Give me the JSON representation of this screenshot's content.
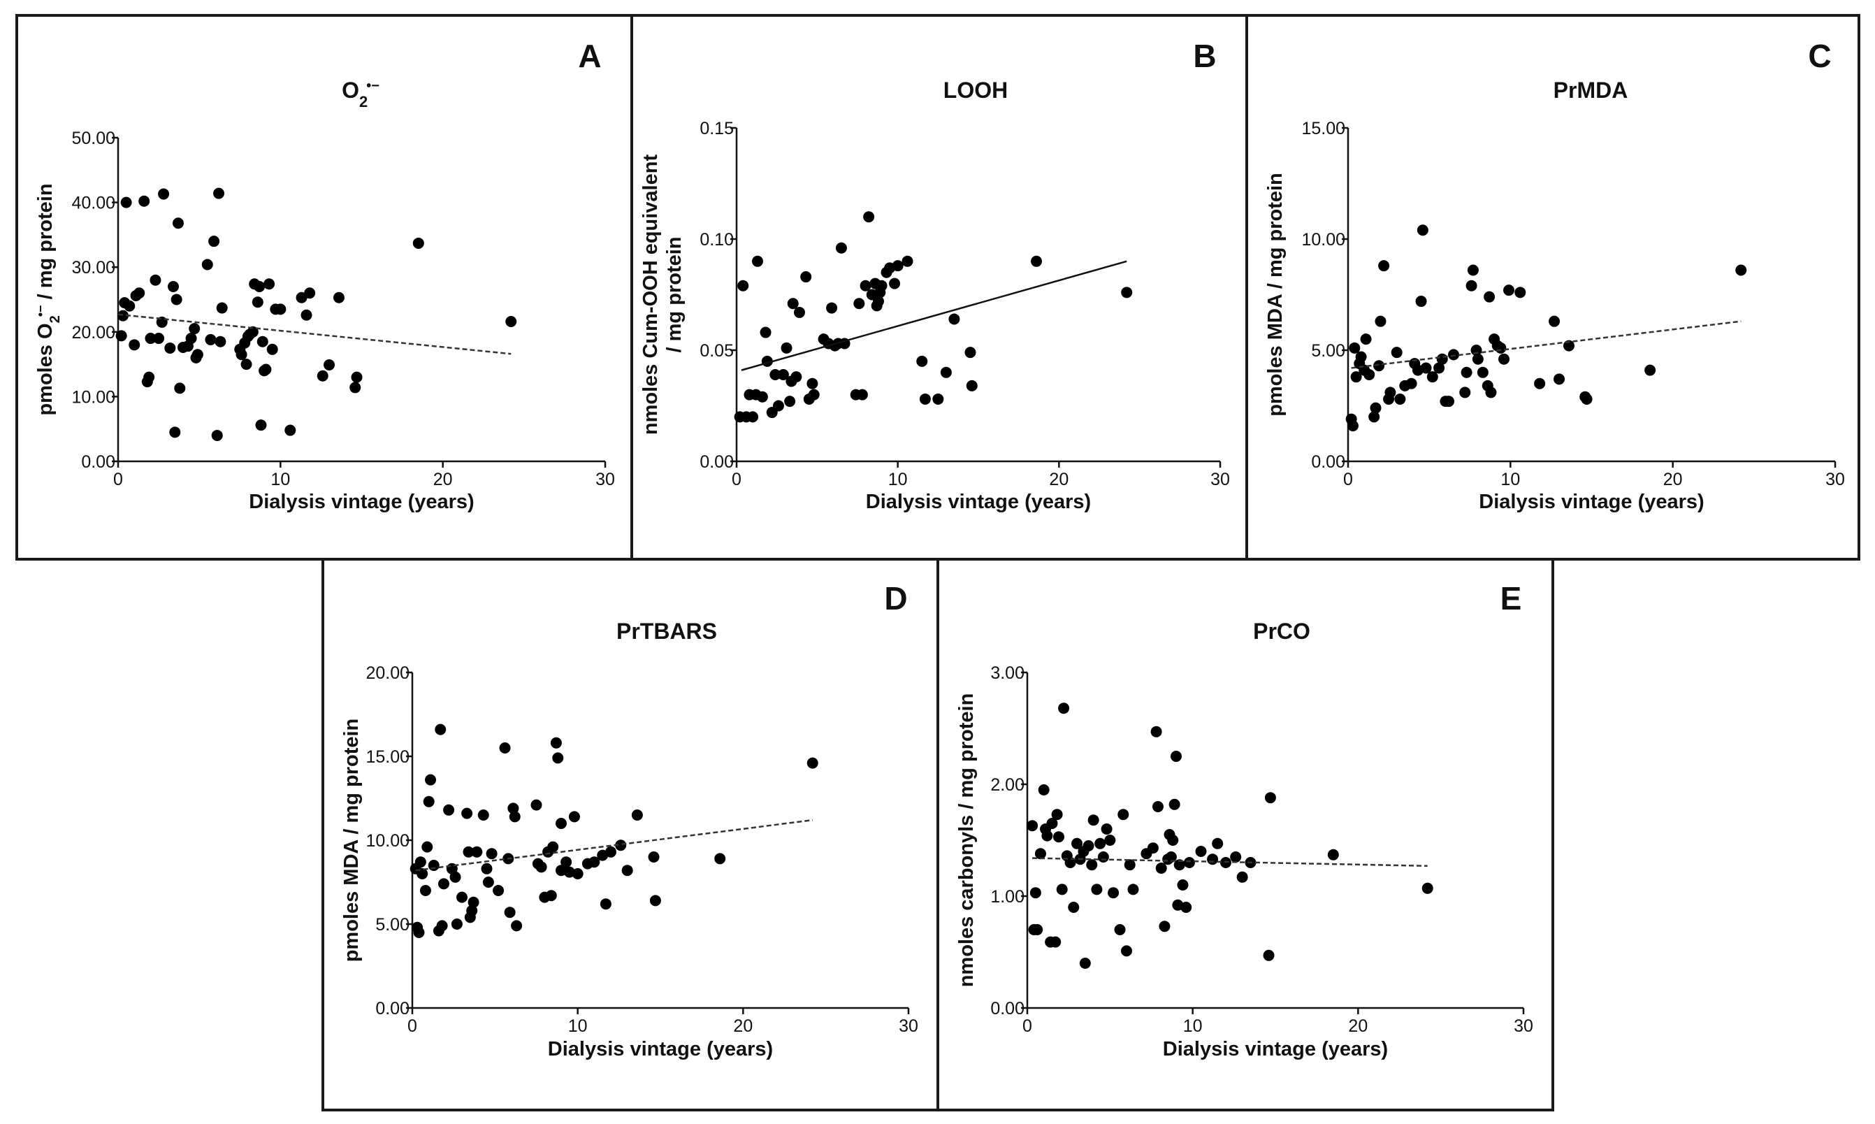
{
  "chart_data": [
    {
      "panel": "A",
      "type": "scatter",
      "title": "O2•−",
      "title_parts": {
        "base": "O",
        "sub": "2",
        "sup": "•−"
      },
      "xlabel": "Dialysis vintage (years)",
      "ylabel": "pmoles O2•− / mg protein",
      "ylabel_parts": {
        "before": "pmoles O",
        "sub": "2",
        "sup": "•−",
        "after": " / mg protein"
      },
      "xlim": [
        0,
        30
      ],
      "ylim": [
        0,
        50
      ],
      "xticks": [
        0,
        10,
        20,
        30
      ],
      "xtick_labels": [
        "0",
        "10",
        "20",
        "30"
      ],
      "yticks": [
        0,
        10,
        20,
        30,
        40,
        50
      ],
      "ytick_labels": [
        "0.00",
        "10.00",
        "20.00",
        "30.00",
        "40.00",
        "50.00"
      ],
      "trendline": {
        "style": "dashed",
        "x": [
          0,
          24.2
        ],
        "y": [
          22.7,
          16.6
        ]
      },
      "points": [
        [
          0.2,
          19.4
        ],
        [
          0.3,
          22.5
        ],
        [
          0.4,
          24.5
        ],
        [
          0.5,
          40
        ],
        [
          0.7,
          24
        ],
        [
          1,
          18
        ],
        [
          1.1,
          25.6
        ],
        [
          1.3,
          26
        ],
        [
          1.6,
          40.2
        ],
        [
          1.8,
          12.3
        ],
        [
          1.9,
          13
        ],
        [
          2,
          19
        ],
        [
          2.3,
          28
        ],
        [
          2.5,
          19
        ],
        [
          2.7,
          21.5
        ],
        [
          2.8,
          41.3
        ],
        [
          3.2,
          17.5
        ],
        [
          3.4,
          27
        ],
        [
          3.5,
          4.5
        ],
        [
          3.6,
          25
        ],
        [
          3.7,
          36.8
        ],
        [
          3.8,
          11.3
        ],
        [
          4,
          17.6
        ],
        [
          4.3,
          17.8
        ],
        [
          4.5,
          19
        ],
        [
          4.7,
          20.5
        ],
        [
          4.8,
          16
        ],
        [
          4.9,
          16.5
        ],
        [
          5.5,
          30.4
        ],
        [
          5.7,
          18.8
        ],
        [
          5.9,
          34
        ],
        [
          6.1,
          4
        ],
        [
          6.2,
          41.4
        ],
        [
          6.3,
          18.5
        ],
        [
          6.4,
          23.7
        ],
        [
          7.5,
          17.3
        ],
        [
          7.6,
          16.5
        ],
        [
          7.8,
          18.3
        ],
        [
          7.9,
          15
        ],
        [
          8,
          19.3
        ],
        [
          8.1,
          19.6
        ],
        [
          8.3,
          20
        ],
        [
          8.4,
          27.4
        ],
        [
          8.6,
          24.6
        ],
        [
          8.7,
          27
        ],
        [
          8.8,
          5.6
        ],
        [
          8.9,
          18.5
        ],
        [
          9,
          14
        ],
        [
          9.1,
          14.2
        ],
        [
          9.3,
          27.4
        ],
        [
          9.5,
          17.3
        ],
        [
          9.7,
          23.5
        ],
        [
          10,
          23.5
        ],
        [
          10.6,
          4.8
        ],
        [
          11.3,
          25.3
        ],
        [
          11.6,
          22.6
        ],
        [
          11.8,
          26
        ],
        [
          12.6,
          13.2
        ],
        [
          13,
          14.9
        ],
        [
          13.6,
          25.3
        ],
        [
          14.6,
          11.4
        ],
        [
          14.7,
          13
        ],
        [
          18.5,
          33.7
        ],
        [
          24.2,
          21.6
        ]
      ]
    },
    {
      "panel": "B",
      "type": "scatter",
      "title": "LOOH",
      "xlabel": "Dialysis vintage (years)",
      "ylabel": "nmoles Cum-OOH equivalent",
      "ylabel_line2": "/ mg protein",
      "xlim": [
        0,
        30
      ],
      "ylim": [
        0,
        0.15
      ],
      "xticks": [
        0,
        10,
        20,
        30
      ],
      "xtick_labels": [
        "0",
        "10",
        "20",
        "30"
      ],
      "yticks": [
        0,
        0.05,
        0.1,
        0.15
      ],
      "ytick_labels": [
        "0.00",
        "0.05",
        "0.10",
        "0.15"
      ],
      "trendline": {
        "style": "solid",
        "x": [
          0.3,
          24.2
        ],
        "y": [
          0.041,
          0.09
        ]
      },
      "points": [
        [
          0.2,
          0.02
        ],
        [
          0.4,
          0.079
        ],
        [
          0.6,
          0.02
        ],
        [
          0.8,
          0.03
        ],
        [
          1,
          0.02
        ],
        [
          1.2,
          0.03
        ],
        [
          1.3,
          0.09
        ],
        [
          1.6,
          0.029
        ],
        [
          1.8,
          0.058
        ],
        [
          1.9,
          0.045
        ],
        [
          2.2,
          0.022
        ],
        [
          2.4,
          0.039
        ],
        [
          2.6,
          0.025
        ],
        [
          2.9,
          0.039
        ],
        [
          3.1,
          0.051
        ],
        [
          3.3,
          0.027
        ],
        [
          3.4,
          0.036
        ],
        [
          3.5,
          0.071
        ],
        [
          3.7,
          0.038
        ],
        [
          3.9,
          0.067
        ],
        [
          4.3,
          0.083
        ],
        [
          4.5,
          0.028
        ],
        [
          4.7,
          0.035
        ],
        [
          4.8,
          0.03
        ],
        [
          5.4,
          0.055
        ],
        [
          5.7,
          0.053
        ],
        [
          5.9,
          0.069
        ],
        [
          6.1,
          0.052
        ],
        [
          6.3,
          0.053
        ],
        [
          6.5,
          0.096
        ],
        [
          6.7,
          0.053
        ],
        [
          7.4,
          0.03
        ],
        [
          7.6,
          0.071
        ],
        [
          7.8,
          0.03
        ],
        [
          8,
          0.079
        ],
        [
          8.2,
          0.11
        ],
        [
          8.4,
          0.075
        ],
        [
          8.6,
          0.08
        ],
        [
          8.7,
          0.07
        ],
        [
          8.8,
          0.072
        ],
        [
          8.9,
          0.076
        ],
        [
          9,
          0.079
        ],
        [
          9.3,
          0.085
        ],
        [
          9.5,
          0.087
        ],
        [
          9.8,
          0.08
        ],
        [
          10,
          0.088
        ],
        [
          10.6,
          0.09
        ],
        [
          11.5,
          0.045
        ],
        [
          11.7,
          0.028
        ],
        [
          12.5,
          0.028
        ],
        [
          13,
          0.04
        ],
        [
          13.5,
          0.064
        ],
        [
          14.5,
          0.049
        ],
        [
          14.6,
          0.034
        ],
        [
          18.6,
          0.09
        ],
        [
          24.2,
          0.076
        ]
      ]
    },
    {
      "panel": "C",
      "type": "scatter",
      "title": "PrMDA",
      "xlabel": "Dialysis vintage (years)",
      "ylabel": "pmoles MDA / mg protein",
      "xlim": [
        0,
        30
      ],
      "ylim": [
        0,
        15
      ],
      "xticks": [
        0,
        10,
        20,
        30
      ],
      "xtick_labels": [
        "0",
        "10",
        "20",
        "30"
      ],
      "yticks": [
        0,
        5,
        10,
        15
      ],
      "ytick_labels": [
        "0.00",
        "5.00",
        "10.00",
        "15.00"
      ],
      "trendline": {
        "style": "dashed",
        "x": [
          0.2,
          24.2
        ],
        "y": [
          4.2,
          6.3
        ]
      },
      "points": [
        [
          0.2,
          1.9
        ],
        [
          0.3,
          1.6
        ],
        [
          0.4,
          5.1
        ],
        [
          0.5,
          3.8
        ],
        [
          0.7,
          4.4
        ],
        [
          0.8,
          4.7
        ],
        [
          1,
          4.1
        ],
        [
          1.1,
          5.5
        ],
        [
          1.3,
          3.9
        ],
        [
          1.6,
          2
        ],
        [
          1.7,
          2.4
        ],
        [
          1.9,
          4.3
        ],
        [
          2,
          6.3
        ],
        [
          2.2,
          8.8
        ],
        [
          2.5,
          2.8
        ],
        [
          2.6,
          3.1
        ],
        [
          3,
          4.9
        ],
        [
          3.2,
          2.8
        ],
        [
          3.5,
          3.4
        ],
        [
          3.9,
          3.5
        ],
        [
          4.1,
          4.4
        ],
        [
          4.3,
          4.1
        ],
        [
          4.5,
          7.2
        ],
        [
          4.6,
          10.4
        ],
        [
          4.8,
          4.2
        ],
        [
          5.2,
          3.8
        ],
        [
          5.6,
          4.2
        ],
        [
          5.8,
          4.6
        ],
        [
          6,
          2.7
        ],
        [
          6.2,
          2.7
        ],
        [
          6.5,
          4.8
        ],
        [
          7.2,
          3.1
        ],
        [
          7.3,
          4
        ],
        [
          7.6,
          7.9
        ],
        [
          7.7,
          8.6
        ],
        [
          7.9,
          5
        ],
        [
          8,
          4.6
        ],
        [
          8.3,
          4
        ],
        [
          8.6,
          3.4
        ],
        [
          8.7,
          7.4
        ],
        [
          8.8,
          3.1
        ],
        [
          9,
          5.5
        ],
        [
          9.2,
          5.2
        ],
        [
          9.4,
          5.1
        ],
        [
          9.6,
          4.6
        ],
        [
          9.9,
          7.7
        ],
        [
          10.6,
          7.6
        ],
        [
          11.8,
          3.5
        ],
        [
          12.7,
          6.3
        ],
        [
          13,
          3.7
        ],
        [
          13.6,
          5.2
        ],
        [
          14.6,
          2.9
        ],
        [
          14.7,
          2.8
        ],
        [
          18.6,
          4.1
        ],
        [
          24.2,
          8.6
        ]
      ]
    },
    {
      "panel": "D",
      "type": "scatter",
      "title": "PrTBARS",
      "xlabel": "Dialysis vintage (years)",
      "ylabel": "pmoles MDA / mg protein",
      "xlim": [
        0,
        30
      ],
      "ylim": [
        0,
        20
      ],
      "xticks": [
        0,
        10,
        20,
        30
      ],
      "xtick_labels": [
        "0",
        "10",
        "20",
        "30"
      ],
      "yticks": [
        0,
        5,
        10,
        15,
        20
      ],
      "ytick_labels": [
        "0.00",
        "5.00",
        "10.00",
        "15.00",
        "20.00"
      ],
      "trendline": {
        "style": "dashed",
        "x": [
          0.2,
          24.2
        ],
        "y": [
          8.2,
          11.2
        ]
      },
      "points": [
        [
          0.2,
          8.3
        ],
        [
          0.3,
          4.8
        ],
        [
          0.4,
          4.5
        ],
        [
          0.5,
          8.7
        ],
        [
          0.6,
          8
        ],
        [
          0.8,
          7
        ],
        [
          0.9,
          9.6
        ],
        [
          1,
          12.3
        ],
        [
          1.1,
          13.6
        ],
        [
          1.3,
          8.5
        ],
        [
          1.6,
          4.6
        ],
        [
          1.7,
          16.6
        ],
        [
          1.8,
          4.9
        ],
        [
          1.9,
          7.4
        ],
        [
          2.2,
          11.8
        ],
        [
          2.4,
          8.3
        ],
        [
          2.6,
          7.8
        ],
        [
          2.7,
          5
        ],
        [
          3,
          6.6
        ],
        [
          3.3,
          11.6
        ],
        [
          3.4,
          9.3
        ],
        [
          3.5,
          5.4
        ],
        [
          3.6,
          5.8
        ],
        [
          3.7,
          6.3
        ],
        [
          3.9,
          9.3
        ],
        [
          4.3,
          11.5
        ],
        [
          4.5,
          8.3
        ],
        [
          4.6,
          7.5
        ],
        [
          4.8,
          9.2
        ],
        [
          5.2,
          7
        ],
        [
          5.6,
          15.5
        ],
        [
          5.8,
          8.9
        ],
        [
          5.9,
          5.7
        ],
        [
          6.1,
          11.9
        ],
        [
          6.2,
          11.4
        ],
        [
          6.3,
          4.9
        ],
        [
          7.5,
          12.1
        ],
        [
          7.6,
          8.6
        ],
        [
          7.8,
          8.4
        ],
        [
          8,
          6.6
        ],
        [
          8.2,
          9.3
        ],
        [
          8.4,
          6.7
        ],
        [
          8.5,
          9.6
        ],
        [
          8.7,
          15.8
        ],
        [
          8.8,
          14.9
        ],
        [
          9,
          8.2
        ],
        [
          9,
          11
        ],
        [
          9.3,
          8.7
        ],
        [
          9.5,
          8.1
        ],
        [
          9.8,
          11.4
        ],
        [
          10,
          8
        ],
        [
          10.6,
          8.6
        ],
        [
          11,
          8.7
        ],
        [
          11.5,
          9.1
        ],
        [
          11.7,
          6.2
        ],
        [
          12,
          9.3
        ],
        [
          12.6,
          9.7
        ],
        [
          13,
          8.2
        ],
        [
          13.6,
          11.5
        ],
        [
          14.6,
          9
        ],
        [
          14.7,
          6.4
        ],
        [
          18.6,
          8.9
        ],
        [
          24.2,
          14.6
        ]
      ]
    },
    {
      "panel": "E",
      "type": "scatter",
      "title": "PrCO",
      "xlabel": "Dialysis vintage (years)",
      "ylabel": "nmoles carbonyls / mg protein",
      "xlim": [
        0,
        30
      ],
      "ylim": [
        0,
        3
      ],
      "xticks": [
        0,
        10,
        20,
        30
      ],
      "xtick_labels": [
        "0",
        "10",
        "20",
        "30"
      ],
      "yticks": [
        0,
        1,
        2,
        3
      ],
      "ytick_labels": [
        "0.00",
        "1.00",
        "2.00",
        "3.00"
      ],
      "trendline": {
        "style": "dashed",
        "x": [
          0.3,
          24.2
        ],
        "y": [
          1.34,
          1.27
        ]
      },
      "points": [
        [
          0.3,
          1.63
        ],
        [
          0.4,
          0.7
        ],
        [
          0.5,
          1.03
        ],
        [
          0.6,
          0.7
        ],
        [
          0.8,
          1.38
        ],
        [
          1,
          1.95
        ],
        [
          1.1,
          1.6
        ],
        [
          1.2,
          1.54
        ],
        [
          1.4,
          0.59
        ],
        [
          1.5,
          1.65
        ],
        [
          1.7,
          0.59
        ],
        [
          1.8,
          1.73
        ],
        [
          1.9,
          1.53
        ],
        [
          2.1,
          1.06
        ],
        [
          2.2,
          2.68
        ],
        [
          2.4,
          1.36
        ],
        [
          2.6,
          1.3
        ],
        [
          2.8,
          0.9
        ],
        [
          3,
          1.47
        ],
        [
          3.2,
          1.33
        ],
        [
          3.4,
          1.4
        ],
        [
          3.5,
          0.4
        ],
        [
          3.7,
          1.45
        ],
        [
          3.9,
          1.28
        ],
        [
          4,
          1.68
        ],
        [
          4.2,
          1.06
        ],
        [
          4.4,
          1.47
        ],
        [
          4.6,
          1.35
        ],
        [
          4.8,
          1.6
        ],
        [
          5,
          1.5
        ],
        [
          5.2,
          1.03
        ],
        [
          5.6,
          0.7
        ],
        [
          5.8,
          1.73
        ],
        [
          6,
          0.51
        ],
        [
          6.2,
          1.28
        ],
        [
          6.4,
          1.06
        ],
        [
          7.2,
          1.38
        ],
        [
          7.6,
          1.43
        ],
        [
          7.8,
          2.47
        ],
        [
          7.9,
          1.8
        ],
        [
          8.1,
          1.25
        ],
        [
          8.3,
          0.73
        ],
        [
          8.5,
          1.33
        ],
        [
          8.6,
          1.55
        ],
        [
          8.7,
          1.35
        ],
        [
          8.8,
          1.5
        ],
        [
          8.9,
          1.82
        ],
        [
          9,
          2.25
        ],
        [
          9.1,
          0.92
        ],
        [
          9.2,
          1.28
        ],
        [
          9.4,
          1.1
        ],
        [
          9.6,
          0.9
        ],
        [
          9.8,
          1.3
        ],
        [
          10.5,
          1.4
        ],
        [
          11.2,
          1.33
        ],
        [
          11.5,
          1.47
        ],
        [
          12,
          1.3
        ],
        [
          12.6,
          1.35
        ],
        [
          13,
          1.17
        ],
        [
          13.5,
          1.3
        ],
        [
          14.6,
          0.47
        ],
        [
          14.7,
          1.88
        ],
        [
          18.5,
          1.37
        ],
        [
          24.2,
          1.07
        ]
      ]
    }
  ]
}
